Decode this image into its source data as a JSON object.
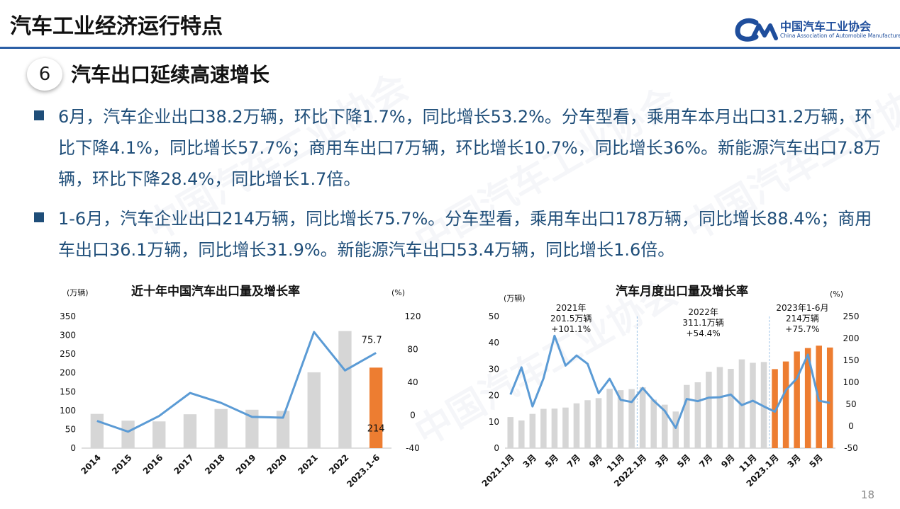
{
  "header": {
    "title": "汽车工业经济运行特点",
    "logo_cn": "中国汽车工业协会",
    "logo_en": "China Association of Automobile Manufacturers",
    "accent_color": "#2c5fa6"
  },
  "section": {
    "number": "6",
    "title": "汽车出口延续高速增长"
  },
  "bullets": [
    "6月，汽车企业出口38.2万辆，环比下降1.7%，同比增长53.2%。分车型看，乘用车本月出口31.2万辆，环比下降4.1%，同比增长57.7%；商用车出口7万辆，环比增长10.7%，同比增长36%。新能源汽车出口7.8万辆，环比下降28.4%，同比增长1.7倍。",
    "1-6月，汽车企业出口214万辆，同比增长75.7%。分车型看，乘用车出口178万辆，同比增长88.4%；商用车出口36.1万辆，同比增长31.9%。新能源汽车出口53.4万辆，同比增长1.6倍。"
  ],
  "watermark": "中国汽车工业协会",
  "page_number": "18",
  "chart_data": [
    {
      "type": "bar",
      "title": "近十年中国汽车出口量及增长率",
      "ylabel": "(万辆)",
      "y2label": "(%)",
      "categories": [
        "2014",
        "2015",
        "2016",
        "2017",
        "2018",
        "2019",
        "2020",
        "2021",
        "2022",
        "2023.1-6"
      ],
      "bar_values": [
        91,
        73,
        71,
        90,
        104,
        102,
        99,
        201.5,
        311.1,
        214
      ],
      "bar_colors": [
        "#d6d6d6",
        "#d6d6d6",
        "#d6d6d6",
        "#d6d6d6",
        "#d6d6d6",
        "#d6d6d6",
        "#d6d6d6",
        "#d6d6d6",
        "#d6d6d6",
        "#ed7d31"
      ],
      "line_values": [
        -7,
        -20,
        -1,
        27,
        15,
        -2,
        -3,
        101.1,
        54.4,
        75.7
      ],
      "line_color": "#5b9bd5",
      "ylim": [
        0,
        350
      ],
      "yticks": [
        0,
        50,
        100,
        150,
        200,
        250,
        300,
        350
      ],
      "y2lim": [
        -40,
        120
      ],
      "y2ticks": [
        -40,
        0,
        40,
        80,
        120
      ],
      "labels": [
        {
          "text": "75.7",
          "anchor": "line",
          "index": 9
        },
        {
          "text": "214",
          "anchor": "bar",
          "index": 9
        }
      ]
    },
    {
      "type": "bar",
      "title": "汽车月度出口量及增长率",
      "ylabel": "(万辆)",
      "y2label": "(%)",
      "categories": [
        "2021.1月",
        "2月",
        "3月",
        "4月",
        "5月",
        "6月",
        "7月",
        "8月",
        "9月",
        "10月",
        "11月",
        "12月",
        "2022.1月",
        "2月",
        "3月",
        "4月",
        "5月",
        "6月",
        "7月",
        "8月",
        "9月",
        "10月",
        "11月",
        "12月",
        "2023.1月",
        "2月",
        "3月",
        "4月",
        "5月",
        "6月"
      ],
      "tick_labels_shown": [
        "2021.1月",
        "3月",
        "5月",
        "7月",
        "9月",
        "11月",
        "2022.1月",
        "3月",
        "5月",
        "7月",
        "9月",
        "11月",
        "2023.1月",
        "3月",
        "5月"
      ],
      "bar_values": [
        11.8,
        10.5,
        13,
        14.9,
        15,
        15.4,
        17,
        18.2,
        19,
        22.5,
        22,
        22.4,
        23.1,
        18.4,
        16.5,
        13.9,
        24,
        25,
        29,
        30.8,
        30.1,
        33.7,
        32.4,
        32.7,
        30,
        32.9,
        36.7,
        38,
        38.9,
        38.2
      ],
      "bar_colors_note": "2021-2022 months gray (#d6d6d6), 2023 months orange (#ed7d31)",
      "line_values": [
        72,
        134,
        45,
        109,
        206,
        138,
        161,
        142,
        75,
        108,
        60,
        55,
        87,
        58,
        35,
        -4,
        62,
        57,
        65,
        66,
        72,
        48,
        58,
        45,
        33,
        82,
        109,
        163,
        58,
        53
      ],
      "line_color": "#5b9bd5",
      "ylim": [
        0,
        50
      ],
      "yticks": [
        0,
        10,
        20,
        30,
        40,
        50
      ],
      "y2lim": [
        -50,
        250
      ],
      "y2ticks": [
        -50,
        0,
        50,
        100,
        150,
        200,
        250
      ],
      "annotations": [
        {
          "lines": [
            "2021年",
            "201.5万辆",
            "+101.1%"
          ]
        },
        {
          "lines": [
            "2022年",
            "311.1万辆",
            "+54.4%"
          ]
        },
        {
          "lines": [
            "2023年1-6月",
            "214万辆",
            "+75.7%"
          ]
        }
      ]
    }
  ]
}
